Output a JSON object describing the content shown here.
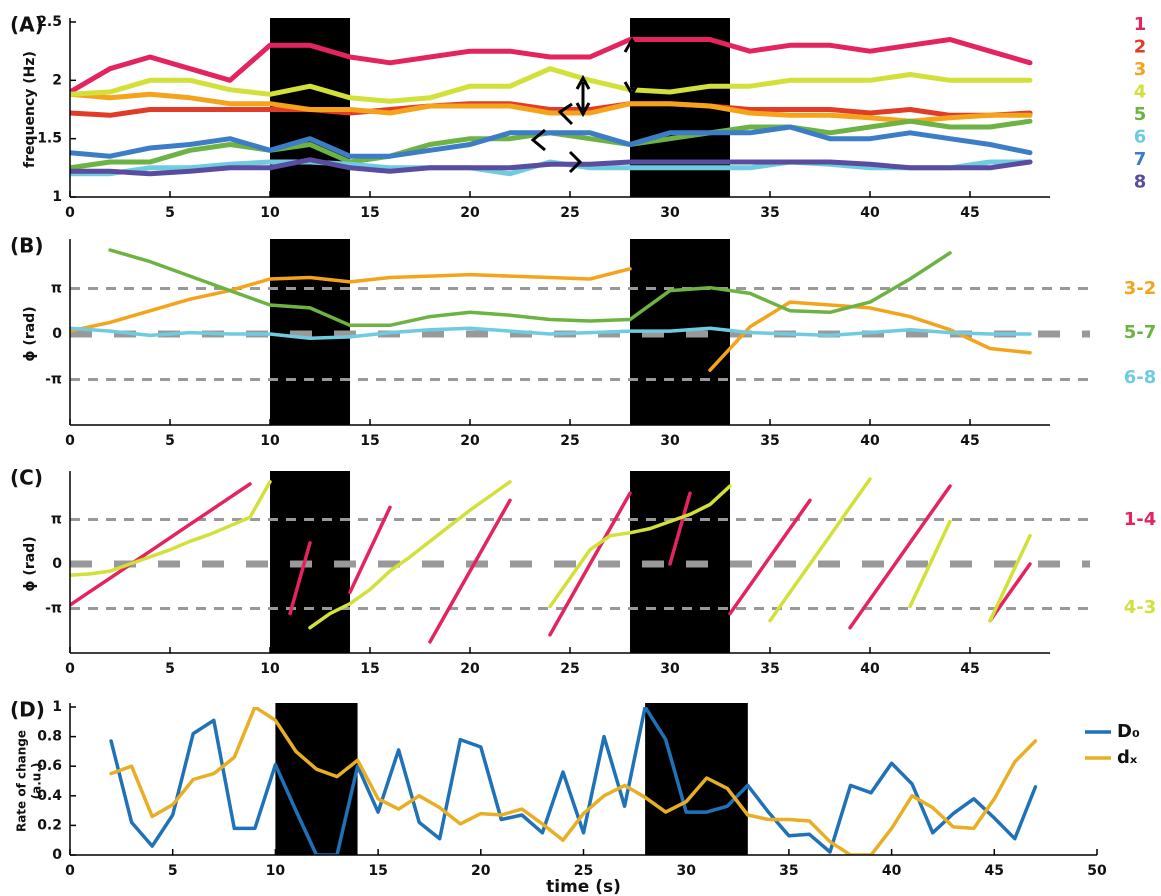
{
  "chart_data": [
    {
      "type": "line",
      "panel": "(A)",
      "ylabel": "frequency (Hz)",
      "x": [
        0,
        2,
        4,
        6,
        8,
        10,
        12,
        14,
        16,
        18,
        20,
        22,
        24,
        26,
        28,
        30,
        32,
        34,
        36,
        38,
        40,
        42,
        44,
        46,
        48
      ],
      "xlim": [
        0,
        49
      ],
      "xticks": [
        0,
        5,
        10,
        15,
        20,
        25,
        30,
        35,
        40,
        45
      ],
      "ylim": [
        1,
        2.5
      ],
      "yticks": [
        1,
        1.5,
        2,
        2.5
      ],
      "shaded": [
        [
          10,
          14
        ],
        [
          28,
          33
        ]
      ],
      "legend": "text-right",
      "series": [
        {
          "name": "1",
          "color": "#e3245f",
          "values": [
            1.9,
            2.1,
            2.2,
            2.1,
            2.0,
            2.3,
            2.3,
            2.2,
            2.15,
            2.2,
            2.25,
            2.25,
            2.2,
            2.2,
            2.35,
            2.35,
            2.35,
            2.25,
            2.3,
            2.3,
            2.25,
            2.3,
            2.35,
            2.25,
            2.15
          ]
        },
        {
          "name": "2",
          "color": "#e03c28",
          "values": [
            1.72,
            1.7,
            1.75,
            1.75,
            1.75,
            1.75,
            1.75,
            1.72,
            1.75,
            1.78,
            1.8,
            1.8,
            1.75,
            1.75,
            1.8,
            1.8,
            1.78,
            1.75,
            1.75,
            1.75,
            1.72,
            1.75,
            1.7,
            1.7,
            1.72
          ]
        },
        {
          "name": "3",
          "color": "#f5a31a",
          "values": [
            1.88,
            1.85,
            1.88,
            1.85,
            1.8,
            1.8,
            1.75,
            1.75,
            1.72,
            1.78,
            1.78,
            1.78,
            1.72,
            1.72,
            1.8,
            1.8,
            1.78,
            1.72,
            1.7,
            1.7,
            1.68,
            1.65,
            1.68,
            1.7,
            1.7
          ]
        },
        {
          "name": "4",
          "color": "#d2e03a",
          "values": [
            1.88,
            1.9,
            2.0,
            2.0,
            1.92,
            1.88,
            1.95,
            1.85,
            1.82,
            1.85,
            1.95,
            1.95,
            2.1,
            2.0,
            1.92,
            1.9,
            1.95,
            1.95,
            2.0,
            2.0,
            2.0,
            2.05,
            2.0,
            2.0,
            2.0
          ]
        },
        {
          "name": "5",
          "color": "#6cb344",
          "values": [
            1.25,
            1.3,
            1.3,
            1.4,
            1.45,
            1.4,
            1.45,
            1.3,
            1.35,
            1.45,
            1.5,
            1.5,
            1.55,
            1.5,
            1.45,
            1.5,
            1.55,
            1.6,
            1.6,
            1.55,
            1.6,
            1.65,
            1.6,
            1.6,
            1.65
          ]
        },
        {
          "name": "6",
          "color": "#6fcbe0",
          "values": [
            1.2,
            1.2,
            1.25,
            1.25,
            1.28,
            1.3,
            1.3,
            1.28,
            1.25,
            1.25,
            1.25,
            1.2,
            1.3,
            1.25,
            1.25,
            1.25,
            1.25,
            1.25,
            1.3,
            1.28,
            1.25,
            1.25,
            1.25,
            1.3,
            1.3
          ]
        },
        {
          "name": "7",
          "color": "#3d7cc6",
          "values": [
            1.38,
            1.35,
            1.42,
            1.45,
            1.5,
            1.4,
            1.5,
            1.35,
            1.35,
            1.4,
            1.45,
            1.55,
            1.55,
            1.55,
            1.45,
            1.55,
            1.55,
            1.55,
            1.6,
            1.5,
            1.5,
            1.55,
            1.5,
            1.45,
            1.38
          ]
        },
        {
          "name": "8",
          "color": "#5a4ca0",
          "values": [
            1.22,
            1.22,
            1.2,
            1.22,
            1.25,
            1.25,
            1.32,
            1.25,
            1.22,
            1.25,
            1.25,
            1.25,
            1.28,
            1.28,
            1.3,
            1.3,
            1.3,
            1.3,
            1.3,
            1.3,
            1.28,
            1.25,
            1.25,
            1.25,
            1.3
          ]
        }
      ]
    },
    {
      "type": "line",
      "panel": "(B)",
      "ylabel": "ϕ (rad)",
      "x": [
        0,
        2,
        4,
        6,
        8,
        10,
        12,
        14,
        16,
        18,
        20,
        22,
        24,
        26,
        28,
        30,
        32,
        34,
        36,
        38,
        40,
        42,
        44,
        46,
        48
      ],
      "xlim": [
        0,
        49
      ],
      "xticks": [
        0,
        5,
        10,
        15,
        20,
        25,
        30,
        35,
        40,
        45
      ],
      "ylim": [
        -6.2832,
        6.2832
      ],
      "yticks": [
        {
          "value": -3.1416,
          "label": "-π"
        },
        0,
        {
          "value": 3.1416,
          "label": "π"
        }
      ],
      "grid": "dashed",
      "shaded": [
        [
          10,
          14
        ],
        [
          28,
          33
        ]
      ],
      "legend": "text-right",
      "series": [
        {
          "name": "3-2",
          "color": "#f5a31a",
          "values": [
            0.2,
            0.8,
            1.6,
            2.4,
            3.0,
            3.8,
            3.9,
            3.6,
            3.9,
            4.0,
            4.1,
            4.0,
            3.9,
            3.8,
            4.5,
            null,
            -2.5,
            0.5,
            2.2,
            2.0,
            1.8,
            1.2,
            0.3,
            -1.0,
            -1.3
          ]
        },
        {
          "name": "5-7",
          "color": "#6cb344",
          "values": [
            null,
            5.8,
            5.0,
            4.0,
            3.0,
            2.0,
            1.8,
            0.6,
            0.6,
            1.2,
            1.5,
            1.3,
            1.0,
            0.9,
            1.0,
            3.0,
            3.2,
            2.8,
            1.6,
            1.5,
            2.2,
            3.8,
            5.6,
            null,
            null
          ]
        },
        {
          "name": "6-8",
          "color": "#6fcbe0",
          "values": [
            0.4,
            0.2,
            -0.1,
            0.1,
            0.0,
            0.0,
            -0.3,
            -0.2,
            0.1,
            0.3,
            0.4,
            0.2,
            0.0,
            0.1,
            0.2,
            0.2,
            0.4,
            0.1,
            0.0,
            -0.1,
            0.1,
            0.3,
            0.1,
            0.0,
            0.0
          ]
        }
      ]
    },
    {
      "type": "line",
      "panel": "(C)",
      "ylabel": "ϕ (rad)",
      "x": [
        0,
        1,
        2,
        3,
        4,
        5,
        6,
        7,
        8,
        9,
        10,
        11,
        12,
        13,
        14,
        15,
        16,
        17,
        18,
        19,
        20,
        21,
        22,
        23,
        24,
        25,
        26,
        27,
        28,
        29,
        30,
        31,
        32,
        33,
        34,
        35,
        36,
        37,
        38,
        39,
        40,
        41,
        42,
        43,
        44,
        45,
        46,
        47,
        48
      ],
      "xlim": [
        0,
        49
      ],
      "xticks": [
        0,
        5,
        10,
        15,
        20,
        25,
        30,
        35,
        40,
        45
      ],
      "ylim": [
        -6.2832,
        6.2832
      ],
      "yticks": [
        {
          "value": -3.1416,
          "label": "-π"
        },
        0,
        {
          "value": 3.1416,
          "label": "π"
        }
      ],
      "grid": "dashed",
      "shaded": [
        [
          10,
          14
        ],
        [
          28,
          33
        ]
      ],
      "legend": "text-right",
      "series": [
        {
          "name": "1-4",
          "color": "#e3245f",
          "values": [
            -2.9,
            -1.95,
            -1.0,
            -0.05,
            0.9,
            1.85,
            2.8,
            3.75,
            4.7,
            5.65,
            null,
            -3.5,
            1.5,
            null,
            -2.0,
            1.0,
            4.0,
            null,
            -5.5,
            -3.0,
            -0.5,
            2.0,
            4.5,
            null,
            -5.0,
            -2.5,
            0.0,
            2.5,
            5.0,
            null,
            0.0,
            5.0,
            null,
            -3.5,
            -1.5,
            0.5,
            2.5,
            4.5,
            null,
            -4.5,
            -2.5,
            -0.5,
            1.5,
            3.5,
            5.5,
            null,
            -4.0,
            -2.0,
            0.0
          ]
        },
        {
          "name": "4-3",
          "color": "#d2e03a",
          "values": [
            -0.8,
            -0.7,
            -0.5,
            0.0,
            0.5,
            1.0,
            1.6,
            2.1,
            2.7,
            3.3,
            5.8,
            null,
            -4.5,
            -3.5,
            -2.8,
            -1.8,
            -0.5,
            0.5,
            1.6,
            2.7,
            3.8,
            4.8,
            5.8,
            null,
            -3.0,
            -1.0,
            1.0,
            2.0,
            2.2,
            2.5,
            3.0,
            3.5,
            4.2,
            5.5,
            null,
            -4.0,
            -2.0,
            0.0,
            2.0,
            4.0,
            6.0,
            null,
            -3.0,
            0.0,
            3.0,
            null,
            -4.0,
            -1.0,
            2.0
          ]
        }
      ]
    },
    {
      "type": "line",
      "panel": "(D)",
      "ylabel": [
        "Rate of change",
        "(a.u.)"
      ],
      "xlabel": "time (s)",
      "x": [
        2,
        3,
        4,
        5,
        6,
        7,
        8,
        9,
        10,
        11,
        12,
        13,
        14,
        15,
        16,
        17,
        18,
        19,
        20,
        21,
        22,
        23,
        24,
        25,
        26,
        27,
        28,
        29,
        30,
        31,
        32,
        33,
        34,
        35,
        36,
        37,
        38,
        39,
        40,
        41,
        42,
        43,
        44,
        45,
        46,
        47
      ],
      "xlim": [
        0,
        50
      ],
      "xticks": [
        0,
        5,
        10,
        15,
        20,
        25,
        30,
        35,
        40,
        45,
        50
      ],
      "ylim": [
        0,
        1
      ],
      "yticks": [
        0,
        0.2,
        0.4,
        0.6,
        0.8,
        1
      ],
      "shaded": [
        [
          10,
          14
        ],
        [
          28,
          33
        ]
      ],
      "legend": "upper right",
      "series": [
        {
          "name": "D₀",
          "color": "#1f72b8",
          "values": [
            0.77,
            0.22,
            0.06,
            0.27,
            0.82,
            0.91,
            0.18,
            0.18,
            0.61,
            0.3,
            0,
            0,
            0.6,
            0.29,
            0.71,
            0.22,
            0.11,
            0.78,
            0.73,
            0.24,
            0.27,
            0.15,
            0.56,
            0.15,
            0.8,
            0.33,
            1.0,
            0.78,
            0.29,
            0.29,
            0.33,
            0.47,
            0.29,
            0.13,
            0.14,
            0.02,
            0.47,
            0.42,
            0.62,
            0.48,
            0.15,
            0.28,
            0.38,
            0.25,
            0.11,
            0.46
          ]
        },
        {
          "name": "dₓ",
          "color": "#e8ae24",
          "values": [
            0.55,
            0.6,
            0.26,
            0.34,
            0.51,
            0.55,
            0.66,
            1.0,
            0.91,
            0.7,
            0.58,
            0.53,
            0.64,
            0.38,
            0.31,
            0.4,
            0.32,
            0.21,
            0.28,
            0.27,
            0.31,
            0.21,
            0.1,
            0.28,
            0.4,
            0.47,
            0.39,
            0.29,
            0.36,
            0.52,
            0.45,
            0.27,
            0.24,
            0.24,
            0.23,
            0.09,
            0,
            0,
            0.18,
            0.4,
            0.32,
            0.19,
            0.18,
            0.38,
            0.63,
            0.77
          ]
        }
      ]
    }
  ]
}
